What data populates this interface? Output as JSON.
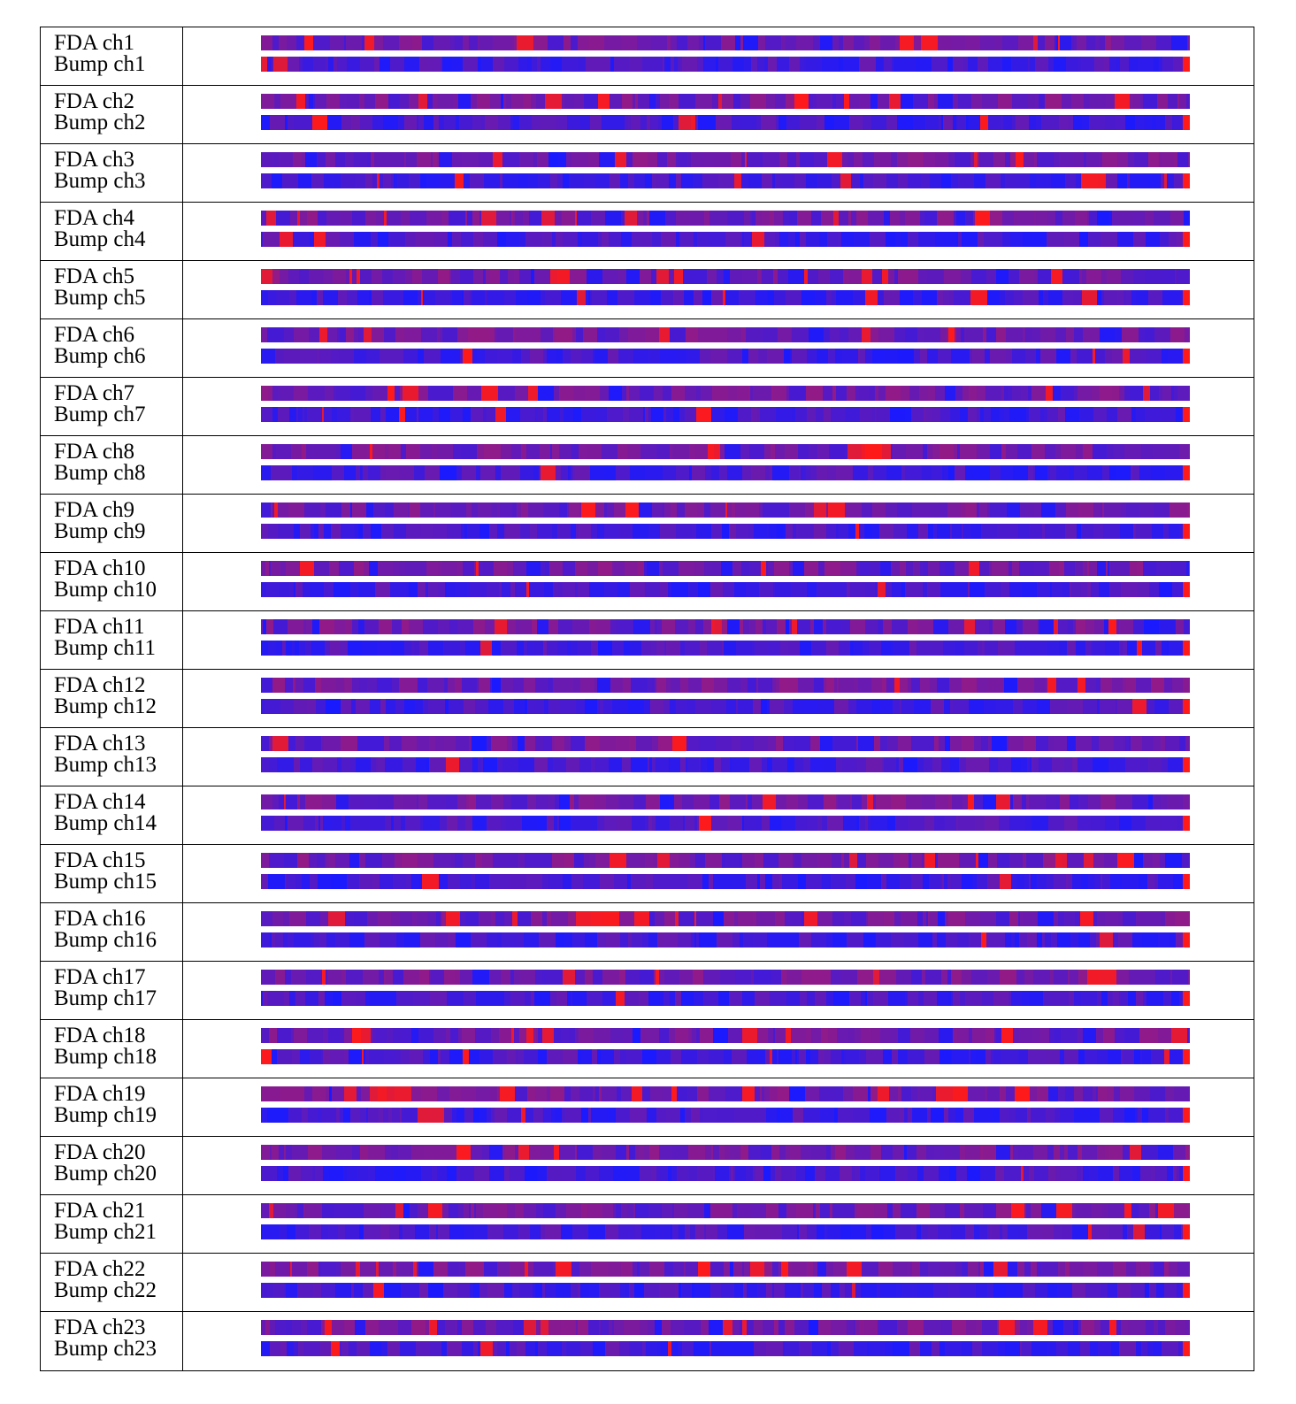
{
  "colors": {
    "low": "#1a1aff",
    "high": "#ff1a1a",
    "border": "#000000"
  },
  "rows": [
    {
      "fda_label": "FDA ch1",
      "bump_label": "Bump ch1"
    },
    {
      "fda_label": "FDA ch2",
      "bump_label": "Bump ch2"
    },
    {
      "fda_label": "FDA ch3",
      "bump_label": "Bump ch3"
    },
    {
      "fda_label": "FDA ch4",
      "bump_label": "Bump ch4"
    },
    {
      "fda_label": "FDA ch5",
      "bump_label": "Bump ch5"
    },
    {
      "fda_label": "FDA ch6",
      "bump_label": "Bump ch6"
    },
    {
      "fda_label": "FDA ch7",
      "bump_label": "Bump ch7"
    },
    {
      "fda_label": "FDA ch8",
      "bump_label": "Bump ch8"
    },
    {
      "fda_label": "FDA ch9",
      "bump_label": "Bump ch9"
    },
    {
      "fda_label": "FDA ch10",
      "bump_label": "Bump ch10"
    },
    {
      "fda_label": "FDA ch11",
      "bump_label": "Bump ch11"
    },
    {
      "fda_label": "FDA ch12",
      "bump_label": "Bump ch12"
    },
    {
      "fda_label": "FDA ch13",
      "bump_label": "Bump ch13"
    },
    {
      "fda_label": "FDA ch14",
      "bump_label": "Bump ch14"
    },
    {
      "fda_label": "FDA ch15",
      "bump_label": "Bump ch15"
    },
    {
      "fda_label": "FDA ch16",
      "bump_label": "Bump ch16"
    },
    {
      "fda_label": "FDA ch17",
      "bump_label": "Bump ch17"
    },
    {
      "fda_label": "FDA ch18",
      "bump_label": "Bump ch18"
    },
    {
      "fda_label": "FDA ch19",
      "bump_label": "Bump ch19"
    },
    {
      "fda_label": "FDA ch20",
      "bump_label": "Bump ch20"
    },
    {
      "fda_label": "FDA ch21",
      "bump_label": "Bump ch21"
    },
    {
      "fda_label": "FDA ch22",
      "bump_label": "Bump ch22"
    },
    {
      "fda_label": "FDA ch23",
      "bump_label": "Bump ch23"
    }
  ]
}
